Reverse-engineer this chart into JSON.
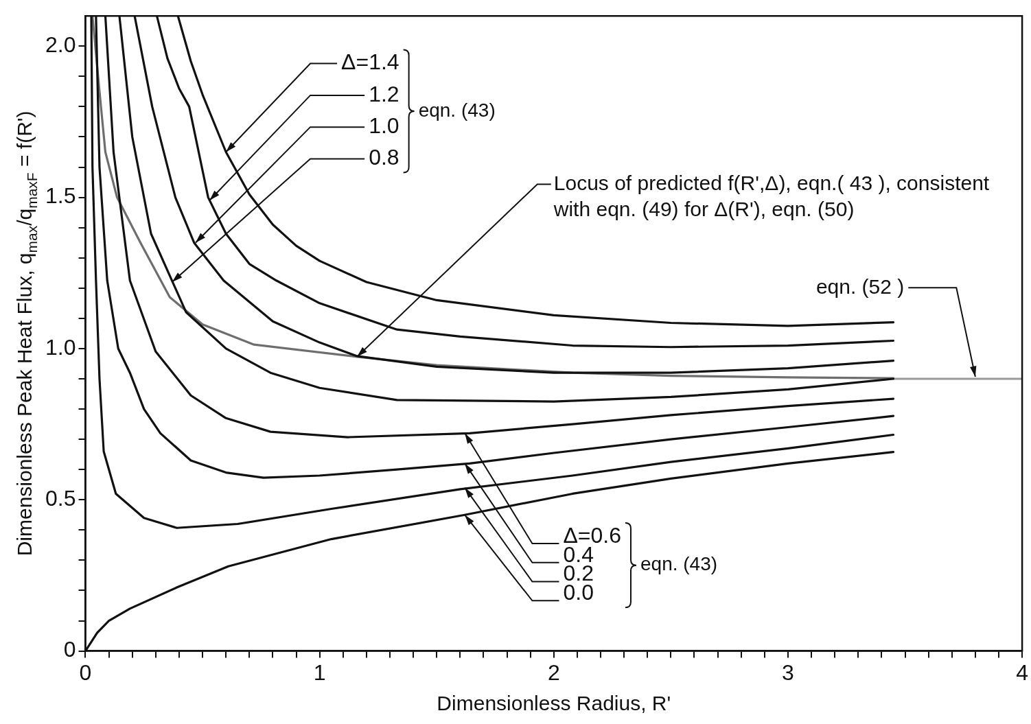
{
  "chart_data": {
    "type": "line",
    "xlabel": "Dimensionless Radius, R'",
    "ylabel": "Dimensionless Peak Heat Flux, q$_{max}$/q$_{maxF}$ = f(R')",
    "xlim": [
      0,
      4
    ],
    "ylim": [
      0,
      2.1
    ],
    "xticks": [
      0,
      {
        "value": 0.1,
        "label": null
      },
      {
        "value": 0.2,
        "label": null
      },
      {
        "value": 0.3,
        "label": null
      },
      {
        "value": 0.4,
        "label": null
      },
      {
        "value": 0.5,
        "label": null
      },
      {
        "value": 0.6,
        "label": null
      },
      {
        "value": 0.7,
        "label": null
      },
      {
        "value": 0.8,
        "label": null
      },
      {
        "value": 0.9,
        "label": null
      },
      1,
      {
        "value": 1.1,
        "label": null
      },
      {
        "value": 1.2,
        "label": null
      },
      {
        "value": 1.3,
        "label": null
      },
      {
        "value": 1.4,
        "label": null
      },
      {
        "value": 1.5,
        "label": null
      },
      {
        "value": 1.6,
        "label": null
      },
      {
        "value": 1.7,
        "label": null
      },
      {
        "value": 1.8,
        "label": null
      },
      {
        "value": 1.9,
        "label": null
      },
      2,
      {
        "value": 2.1,
        "label": null
      },
      {
        "value": 2.2,
        "label": null
      },
      {
        "value": 2.3,
        "label": null
      },
      {
        "value": 2.4,
        "label": null
      },
      {
        "value": 2.5,
        "label": null
      },
      {
        "value": 2.6,
        "label": null
      },
      {
        "value": 2.7,
        "label": null
      },
      {
        "value": 2.8,
        "label": null
      },
      {
        "value": 2.9,
        "label": null
      },
      3,
      {
        "value": 3.1,
        "label": null
      },
      {
        "value": 3.2,
        "label": null
      },
      {
        "value": 3.3,
        "label": null
      },
      {
        "value": 3.4,
        "label": null
      },
      {
        "value": 3.5,
        "label": null
      },
      {
        "value": 3.6,
        "label": null
      },
      {
        "value": 3.7,
        "label": null
      },
      {
        "value": 3.8,
        "label": null
      },
      {
        "value": 3.9,
        "label": null
      },
      4
    ],
    "yticks": [
      0,
      {
        "value": 0.1,
        "label": null
      },
      {
        "value": 0.2,
        "label": null
      },
      {
        "value": 0.3,
        "label": null
      },
      {
        "value": 0.4,
        "label": null
      },
      0.5,
      {
        "value": 0.6,
        "label": null
      },
      {
        "value": 0.7,
        "label": null
      },
      {
        "value": 0.8,
        "label": null
      },
      {
        "value": 0.9,
        "label": null
      },
      {
        "value": 1,
        "label": "1.0"
      },
      {
        "value": 1.1,
        "label": null
      },
      {
        "value": 1.2,
        "label": null
      },
      {
        "value": 1.3,
        "label": null
      },
      {
        "value": 1.4,
        "label": null
      },
      1.5,
      {
        "value": 1.6,
        "label": null
      },
      {
        "value": 1.7,
        "label": null
      },
      {
        "value": 1.8,
        "label": null
      },
      {
        "value": 1.9,
        "label": null
      },
      {
        "value": 2,
        "label": "2.0"
      }
    ],
    "marker": "none",
    "line_style": "solid",
    "annotations": [
      {
        "text": "Δ=1.4",
        "x": 0.6,
        "y": 1.65
      },
      {
        "text": "1.2",
        "x": 0.53,
        "y": 1.49
      },
      {
        "text": "1.0",
        "x": 0.47,
        "y": 1.35
      },
      {
        "text": "0.8",
        "x": 0.37,
        "y": 1.22
      },
      "eqn. (43)",
      {
        "text": "Δ=0.6",
        "x": 1.62,
        "y": 0.72
      },
      {
        "text": "0.4",
        "x": 1.62,
        "y": 0.62
      },
      {
        "text": "0.2",
        "x": 1.62,
        "y": 0.54
      },
      {
        "text": "0.0",
        "x": 1.62,
        "y": 0.45
      },
      "eqn. (43)",
      {
        "text": "Locus of predicted f(R',Δ), eqn.( 43 ), consistent with eqn. (49) for Δ(R'), eqn. (50)",
        "x": 1.16,
        "y": 0.973
      },
      {
        "text": "eqn. (52 )",
        "x": 3.8,
        "y": 0.9
      }
    ],
    "series": [
      {
        "color": "#111111",
        "x": [
          0.395,
          0.45,
          0.5,
          0.6,
          0.7,
          0.8,
          0.9,
          1.0,
          1.2,
          1.5,
          2.0,
          2.5,
          3.0,
          3.45
        ],
        "values": [
          2.1,
          1.95,
          1.84,
          1.65,
          1.51,
          1.41,
          1.34,
          1.29,
          1.22,
          1.16,
          1.11,
          1.085,
          1.075,
          1.087
        ]
      },
      {
        "color": "#111111",
        "x": [
          0.305,
          0.35,
          0.4,
          0.443,
          0.524,
          0.6,
          0.7,
          0.815,
          1.0,
          1.33,
          1.6,
          2.08,
          2.5,
          3.0,
          3.45
        ],
        "values": [
          2.1,
          1.96,
          1.86,
          1.8,
          1.5,
          1.38,
          1.28,
          1.225,
          1.15,
          1.063,
          1.04,
          1.01,
          1.005,
          1.01,
          1.026
        ]
      },
      {
        "color": "#111111",
        "x": [
          0.21,
          0.285,
          0.384,
          0.464,
          0.59,
          0.8,
          1.0,
          1.16,
          1.5,
          2.0,
          2.5,
          3.0,
          3.45
        ],
        "values": [
          2.1,
          1.8,
          1.5,
          1.35,
          1.225,
          1.09,
          1.02,
          0.975,
          0.94,
          0.92,
          0.92,
          0.935,
          0.96
        ]
      },
      {
        "color": "#111111",
        "x": [
          0.145,
          0.2,
          0.28,
          0.43,
          0.6,
          0.79,
          1.0,
          1.33,
          2.0,
          2.5,
          3.0,
          3.45
        ],
        "values": [
          2.1,
          1.7,
          1.38,
          1.12,
          1.0,
          0.92,
          0.87,
          0.83,
          0.825,
          0.84,
          0.865,
          0.9
        ]
      },
      {
        "color": "#111111",
        "x": [
          0.085,
          0.12,
          0.19,
          0.3,
          0.45,
          0.6,
          0.79,
          1.12,
          1.64,
          2.08,
          2.5,
          3.0,
          3.45
        ],
        "values": [
          2.1,
          1.65,
          1.225,
          0.99,
          0.845,
          0.77,
          0.725,
          0.707,
          0.72,
          0.75,
          0.78,
          0.81,
          0.834
        ]
      },
      {
        "color": "#111111",
        "x": [
          0.045,
          0.06,
          0.093,
          0.14,
          0.19,
          0.25,
          0.32,
          0.45,
          0.6,
          0.76,
          1.0,
          1.33,
          1.64,
          2.0,
          2.5,
          3.0,
          3.45
        ],
        "values": [
          2.1,
          1.6,
          1.225,
          1.0,
          0.92,
          0.8,
          0.72,
          0.63,
          0.59,
          0.573,
          0.58,
          0.6,
          0.62,
          0.655,
          0.7,
          0.74,
          0.777
        ]
      },
      {
        "color": "#111111",
        "x": [
          0.025,
          0.03,
          0.045,
          0.06,
          0.078,
          0.13,
          0.25,
          0.39,
          0.65,
          1.05,
          1.6,
          2.08,
          2.5,
          3.0,
          3.45
        ],
        "values": [
          2.1,
          1.6,
          1.225,
          0.9,
          0.66,
          0.52,
          0.44,
          0.407,
          0.42,
          0.47,
          0.535,
          0.58,
          0.625,
          0.67,
          0.715
        ]
      },
      {
        "color": "#111111",
        "x": [
          0,
          0.05,
          0.1,
          0.19,
          0.39,
          0.61,
          1.05,
          1.62,
          2.08,
          2.5,
          3.0,
          3.45
        ],
        "values": [
          0,
          0.06,
          0.1,
          0.14,
          0.21,
          0.28,
          0.37,
          0.45,
          0.52,
          0.57,
          0.62,
          0.658
        ]
      },
      {
        "color": "#6e6e6e",
        "x": [
          0.03,
          0.06,
          0.085,
          0.135,
          0.235,
          0.36,
          0.5,
          0.72,
          1.16,
          1.5,
          2.08,
          2.5,
          3.0,
          3.45
        ],
        "values": [
          2.1,
          1.85,
          1.65,
          1.5,
          1.35,
          1.17,
          1.08,
          1.013,
          0.973,
          0.945,
          0.92,
          0.91,
          0.905,
          0.902
        ]
      },
      {
        "color": "#9a9a9a",
        "x": [
          3.45,
          4
        ],
        "values": [
          0.9,
          0.9
        ]
      }
    ]
  }
}
